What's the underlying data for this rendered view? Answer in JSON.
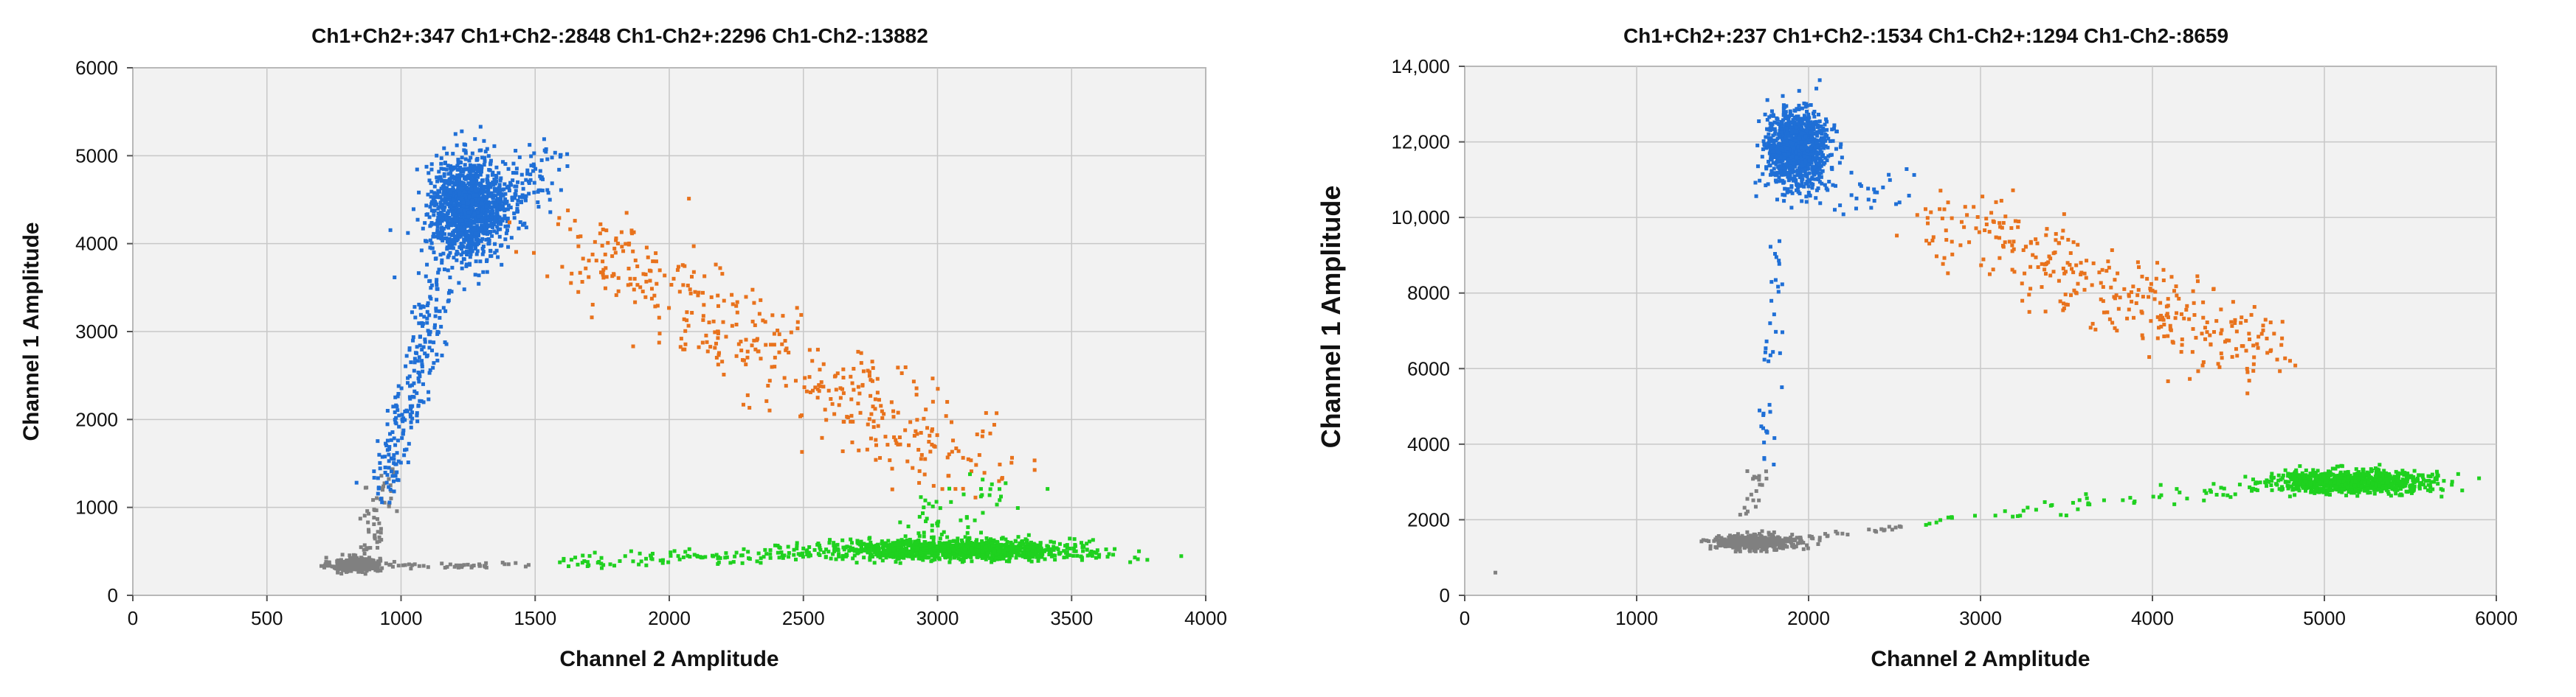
{
  "chart_data": [
    {
      "type": "scatter",
      "title": "Ch1+Ch2+:347  Ch1+Ch2-:2848  Ch1-Ch2+:2296  Ch1-Ch2-:13882",
      "xlabel": "Channel 2 Amplitude",
      "ylabel": "Channel 1 Amplitude",
      "xlim": [
        0,
        4000
      ],
      "ylim": [
        0,
        6000
      ],
      "xticks": [
        0,
        500,
        1000,
        1500,
        2000,
        2500,
        3000,
        3500,
        4000
      ],
      "yticks": [
        0,
        1000,
        2000,
        3000,
        4000,
        5000,
        6000
      ],
      "xtick_labels": [
        "0",
        "500",
        "1000",
        "1500",
        "2000",
        "2500",
        "3000",
        "3500",
        "4000"
      ],
      "ytick_labels": [
        "0",
        "1000",
        "2000",
        "3000",
        "4000",
        "5000",
        "6000"
      ],
      "grid": true,
      "series": [
        {
          "color": "#808080",
          "clusters": [
            {
              "center": [
                830,
                350
              ],
              "spread": [
                45,
                40
              ],
              "count": 380
            },
            {
              "from": [
                900,
                330
              ],
              "to": [
                1480,
                340
              ],
              "jitter": [
                10,
                15
              ],
              "count": 45
            },
            {
              "from": [
                880,
                450
              ],
              "to": [
                930,
                1350
              ],
              "jitter": [
                25,
                60
              ],
              "count": 55
            }
          ]
        },
        {
          "color": "#1f6fd6",
          "clusters": [
            {
              "center": [
                1250,
                4400
              ],
              "spread": [
                70,
                280
              ],
              "count": 1300
            },
            {
              "from": [
                930,
                1200
              ],
              "to": [
                1150,
                3600
              ],
              "jitter": [
                35,
                150
              ],
              "count": 230
            },
            {
              "from": [
                1300,
                4300
              ],
              "to": [
                1550,
                4900
              ],
              "jitter": [
                40,
                180
              ],
              "count": 130
            }
          ]
        },
        {
          "color": "#e8721c",
          "clusters": [
            {
              "from": [
                1600,
                4100
              ],
              "to": [
                3150,
                1450
              ],
              "jitter": [
                120,
                230
              ],
              "count": 420
            }
          ]
        },
        {
          "color": "#1fd11f",
          "clusters": [
            {
              "center": [
                3050,
                520
              ],
              "spread": [
                230,
                55
              ],
              "count": 1100
            },
            {
              "from": [
                1600,
                380
              ],
              "to": [
                2550,
                480
              ],
              "jitter": [
                20,
                40
              ],
              "count": 110
            },
            {
              "from": [
                2900,
                700
              ],
              "to": [
                3250,
                1250
              ],
              "jitter": [
                80,
                170
              ],
              "count": 60
            },
            {
              "from": [
                3350,
                480
              ],
              "to": [
                3760,
                420
              ],
              "jitter": [
                20,
                30
              ],
              "count": 25
            }
          ]
        }
      ]
    },
    {
      "type": "scatter",
      "title": "Ch1+Ch2+:237  Ch1+Ch2-:1534  Ch1-Ch2+:1294  Ch1-Ch2-:8659",
      "xlabel": "Channel 2 Amplitude",
      "ylabel": "Channel 1 Amplitude",
      "xlim": [
        0,
        6000
      ],
      "ylim": [
        0,
        14000
      ],
      "xticks": [
        0,
        1000,
        2000,
        3000,
        4000,
        5000,
        6000
      ],
      "yticks": [
        0,
        2000,
        4000,
        6000,
        8000,
        10000,
        12000,
        14000
      ],
      "xtick_labels": [
        "0",
        "1000",
        "2000",
        "3000",
        "4000",
        "5000",
        "6000"
      ],
      "ytick_labels": [
        "0",
        "2000",
        "4000",
        "6000",
        "8000",
        "10,000",
        "12,000",
        "14,000"
      ],
      "grid": true,
      "series": [
        {
          "color": "#808080",
          "clusters": [
            {
              "center": [
                1700,
                1400
              ],
              "spread": [
                110,
                90
              ],
              "count": 550
            },
            {
              "from": [
                1950,
                1500
              ],
              "to": [
                2550,
                1800
              ],
              "jitter": [
                20,
                40
              ],
              "count": 25
            },
            {
              "from": [
                1650,
                2000
              ],
              "to": [
                1720,
                3300
              ],
              "jitter": [
                30,
                150
              ],
              "count": 20
            },
            {
              "center": [
                180,
                600
              ],
              "spread": [
                3,
                20
              ],
              "count": 1
            }
          ]
        },
        {
          "color": "#1f6fd6",
          "clusters": [
            {
              "center": [
                1930,
                11800
              ],
              "spread": [
                90,
                520
              ],
              "count": 1000
            },
            {
              "from": [
                1740,
                3600
              ],
              "to": [
                1830,
                9500
              ],
              "jitter": [
                30,
                280
              ],
              "count": 40
            },
            {
              "from": [
                2000,
                10500
              ],
              "to": [
                2500,
                10800
              ],
              "jitter": [
                80,
                300
              ],
              "count": 30
            }
          ]
        },
        {
          "color": "#e8721c",
          "clusters": [
            {
              "from": [
                2800,
                10000
              ],
              "to": [
                4700,
                6200
              ],
              "jitter": [
                180,
                480
              ],
              "count": 330
            }
          ]
        },
        {
          "color": "#1fd11f",
          "clusters": [
            {
              "center": [
                5150,
                3000
              ],
              "spread": [
                240,
                140
              ],
              "count": 900
            },
            {
              "from": [
                2600,
                1900
              ],
              "to": [
                4500,
                2800
              ],
              "jitter": [
                60,
                110
              ],
              "count": 55
            }
          ]
        }
      ]
    }
  ]
}
